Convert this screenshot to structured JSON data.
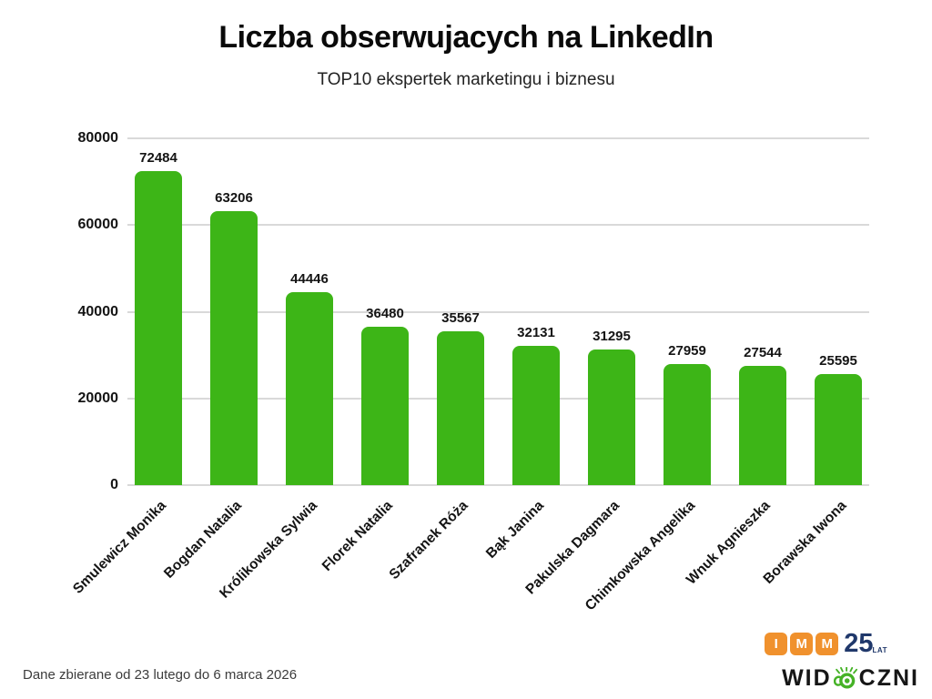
{
  "header": {
    "title": "Liczba obserwujacych na LinkedIn",
    "subtitle": "TOP10 ekspertek marketingu i biznesu"
  },
  "footer": {
    "note": "Dane zbierane od 23 lutego do 6 marca 2026"
  },
  "logos": {
    "imm": {
      "letters": [
        "I",
        "M",
        "M"
      ],
      "years": "25",
      "years_unit": "LAT"
    },
    "widoczni": {
      "prefix": "WID",
      "suffix": "CZNI"
    }
  },
  "colors": {
    "bar_green": "#3DB517",
    "gridline_gray": "#d9d9d9",
    "imm_orange": "#F0912D",
    "imm_navy": "#20386B",
    "snail_green": "#45B226",
    "text_dark": "#141414"
  },
  "chart_data": {
    "type": "bar",
    "title": "Liczba obserwujacych na LinkedIn",
    "subtitle": "TOP10 ekspertek marketingu i biznesu",
    "categories": [
      "Smulewicz Monika",
      "Bogdan Natalia",
      "Królikowska Sylwia",
      "Florek Natalia",
      "Szafranek Róża",
      "Bąk Janina",
      "Pakulska Dagmara",
      "Chimkowska Angelika",
      "Wnuk Agnieszka",
      "Borawska Iwona"
    ],
    "values": [
      72484,
      63206,
      44446,
      36480,
      35567,
      32131,
      31295,
      27959,
      27544,
      25595
    ],
    "xlabel": "",
    "ylabel": "",
    "ylim": [
      0,
      80000
    ],
    "yticks": [
      0,
      20000,
      40000,
      60000,
      80000
    ],
    "grid": true,
    "legend": false,
    "value_labels": true,
    "xlabel_rotation_deg": -45
  }
}
